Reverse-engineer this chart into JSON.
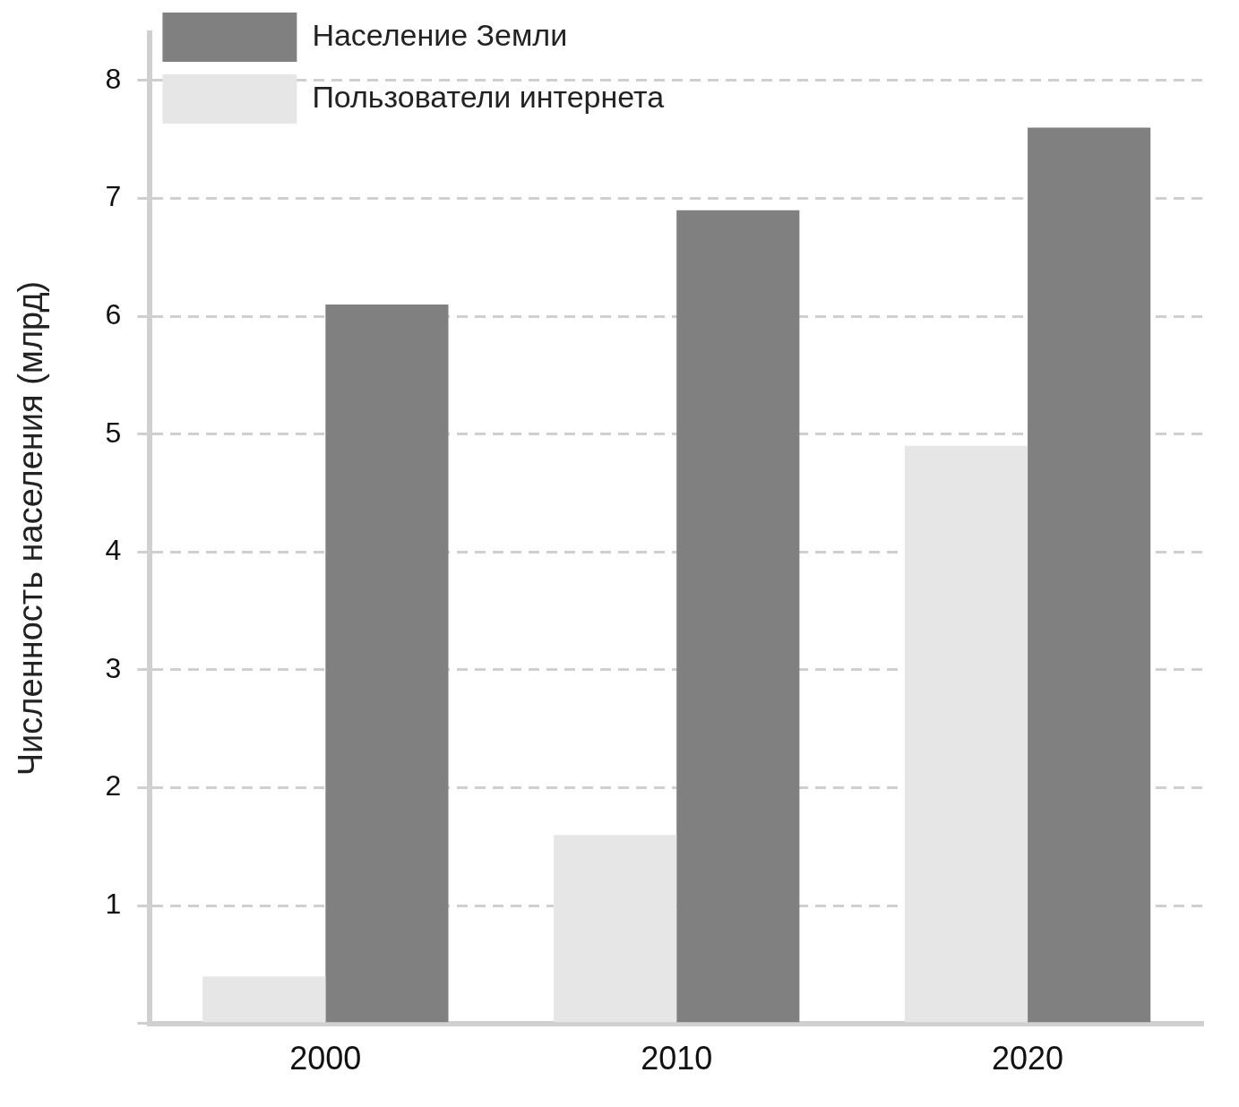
{
  "chart_data": {
    "type": "bar",
    "ylabel": "Численность населения (млрд)",
    "categories": [
      "2000",
      "2010",
      "2020"
    ],
    "series": [
      {
        "name": "Пользователи интернета",
        "color": "#e6e6e6",
        "values": [
          0.4,
          1.6,
          4.9
        ]
      },
      {
        "name": "Население Земли",
        "color": "#808080",
        "values": [
          6.1,
          6.9,
          7.6
        ]
      }
    ],
    "ylim": [
      0,
      8.4
    ],
    "yticks": [
      {
        "value": 0,
        "label": null
      },
      1,
      2,
      3,
      4,
      5,
      6,
      7,
      8
    ],
    "grid": "y",
    "legend": "top left"
  }
}
